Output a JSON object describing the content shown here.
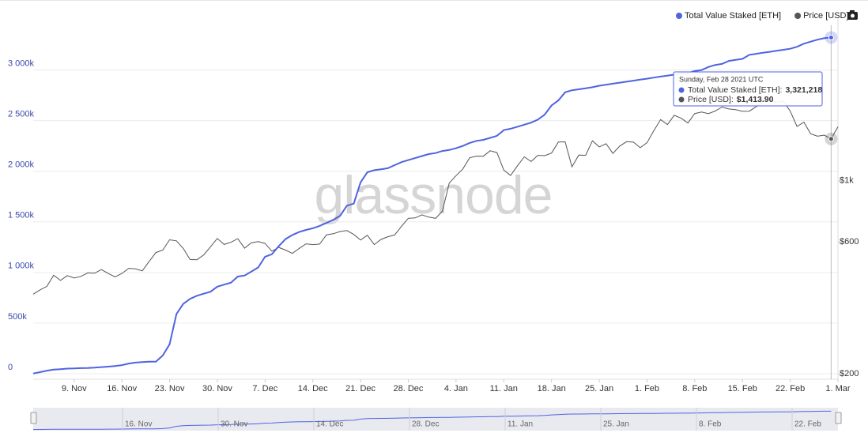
{
  "chart_data": {
    "type": "line",
    "watermark": "glassnode",
    "categories": [
      null,
      null,
      null,
      null,
      null,
      null,
      "9. Nov",
      null,
      null,
      null,
      null,
      null,
      null,
      "16. Nov",
      null,
      null,
      null,
      null,
      null,
      null,
      "23. Nov",
      null,
      null,
      null,
      null,
      null,
      null,
      "30. Nov",
      null,
      null,
      null,
      null,
      null,
      null,
      "7. Dec",
      null,
      null,
      null,
      null,
      null,
      null,
      "14. Dec",
      null,
      null,
      null,
      null,
      null,
      null,
      "21. Dec",
      null,
      null,
      null,
      null,
      null,
      null,
      "28. Dec",
      null,
      null,
      null,
      null,
      null,
      null,
      "4. Jan",
      null,
      null,
      null,
      null,
      null,
      null,
      "11. Jan",
      null,
      null,
      null,
      null,
      null,
      null,
      "18. Jan",
      null,
      null,
      null,
      null,
      null,
      null,
      "25. Jan",
      null,
      null,
      null,
      null,
      null,
      null,
      "1. Feb",
      null,
      null,
      null,
      null,
      null,
      null,
      "8. Feb",
      null,
      null,
      null,
      null,
      null,
      null,
      "15. Feb",
      null,
      null,
      null,
      null,
      null,
      null,
      "22. Feb",
      null,
      null,
      null,
      null,
      null,
      null,
      "1. Mar"
    ],
    "series": [
      {
        "name": "Total Value Staked [ETH]",
        "color": "#4f63e0",
        "axis": "y",
        "values": [
          2000,
          15000,
          30000,
          40000,
          45000,
          50000,
          52000,
          55000,
          57000,
          60000,
          65000,
          70000,
          75000,
          85000,
          100000,
          110000,
          115000,
          118000,
          120000,
          180000,
          290000,
          590000,
          690000,
          740000,
          770000,
          790000,
          810000,
          860000,
          880000,
          900000,
          960000,
          970000,
          1010000,
          1050000,
          1156000,
          1180000,
          1260000,
          1330000,
          1370000,
          1400000,
          1420000,
          1437000,
          1460000,
          1490000,
          1520000,
          1560000,
          1660000,
          1680000,
          1890000,
          1990000,
          2010000,
          2020000,
          2030000,
          2060000,
          2090000,
          2110000,
          2130000,
          2150000,
          2170000,
          2180000,
          2200000,
          2210000,
          2227000,
          2250000,
          2280000,
          2300000,
          2310000,
          2330000,
          2350000,
          2406000,
          2420000,
          2440000,
          2460000,
          2480000,
          2510000,
          2560000,
          2650000,
          2700000,
          2780000,
          2800000,
          2810000,
          2820000,
          2830000,
          2845000,
          2855000,
          2865000,
          2875000,
          2885000,
          2895000,
          2905000,
          2914000,
          2925000,
          2935000,
          2945000,
          2955000,
          2965000,
          2969000,
          2990000,
          3000000,
          3030000,
          3050000,
          3060000,
          3090000,
          3100000,
          3110000,
          3150000,
          3160000,
          3170000,
          3180000,
          3190000,
          3200000,
          3210000,
          3230000,
          3260000,
          3280000,
          3300000,
          3315000,
          3321218,
          null
        ]
      },
      {
        "name": "Price [USD]",
        "color": "#555555",
        "axis": "y2",
        "values": [
          388,
          402,
          414,
          454,
          435,
          453,
          444,
          450,
          463,
          462,
          476,
          461,
          448,
          461,
          481,
          479,
          471,
          510,
          549,
          560,
          610,
          605,
          568,
          518,
          517,
          538,
          576,
          617,
          587,
          598,
          616,
          569,
          596,
          601,
          592,
          555,
          573,
          560,
          545,
          568,
          590,
          586,
          589,
          636,
          642,
          654,
          659,
          638,
          609,
          634,
          586,
          612,
          626,
          635,
          683,
          730,
          732,
          751,
          737,
          730,
          775,
          979,
          1041,
          1101,
          1208,
          1225,
          1224,
          1281,
          1262,
          1090,
          1043,
          1130,
          1218,
          1171,
          1233,
          1230,
          1257,
          1377,
          1380,
          1121,
          1236,
          1233,
          1392,
          1323,
          1358,
          1253,
          1332,
          1382,
          1376,
          1314,
          1369,
          1514,
          1661,
          1593,
          1721,
          1680,
          1614,
          1746,
          1768,
          1744,
          1784,
          1843,
          1814,
          1804,
          1779,
          1781,
          1848,
          1937,
          1960,
          1919,
          1935,
          1781,
          1569,
          1626,
          1475,
          1446,
          1459,
          1413.9,
          1565
        ]
      }
    ],
    "ylim": [
      -55000,
      3520000
    ],
    "yticks": [
      0,
      {
        "value": 500000,
        "label": "500k"
      },
      {
        "value": 1000000,
        "label": "1 000k"
      },
      {
        "value": 1500000,
        "label": "1 500k"
      },
      {
        "value": 2000000,
        "label": "2 000k"
      },
      {
        "value": 2500000,
        "label": "2 500k"
      },
      {
        "value": 3000000,
        "label": "3 000k"
      }
    ],
    "y2scale": "log",
    "y2lim": [
      191,
      3890
    ],
    "y2ticks": [
      {
        "value": 200,
        "label": "$200"
      },
      {
        "value": 600,
        "label": "$600"
      },
      {
        "value": 1000,
        "label": "$1k"
      }
    ],
    "grid": true,
    "legend": "top-right",
    "tooltip": {
      "title": "Sunday, Feb 28 2021 UTC",
      "rows": [
        {
          "label": "Total Value Staked [ETH]:",
          "value": "3,321,218"
        },
        {
          "label": "Price [USD]:",
          "value": "$1,413.90"
        }
      ]
    },
    "navigator": {
      "labels": [
        "16. Nov",
        "30. Nov",
        "14. Dec",
        "28. Dec",
        "11. Jan",
        "25. Jan",
        "8. Feb",
        "22. Feb"
      ]
    }
  }
}
